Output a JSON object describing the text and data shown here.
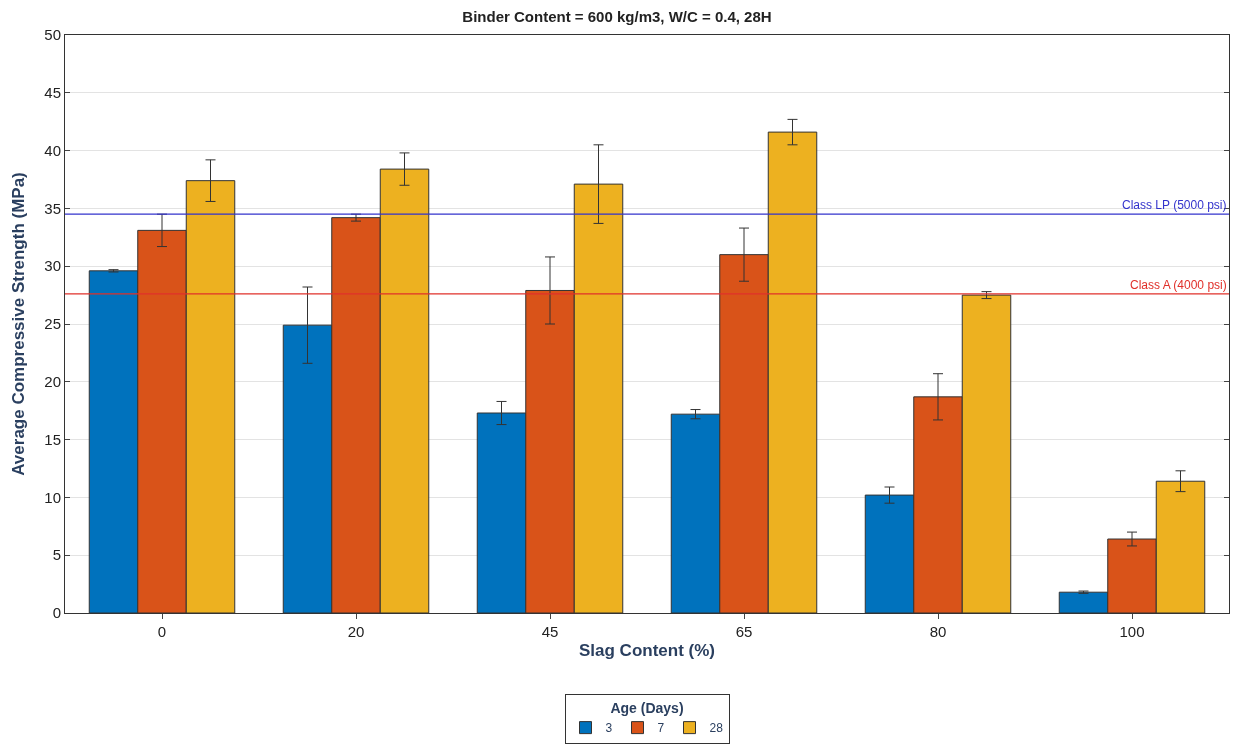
{
  "chart_data": {
    "type": "bar",
    "title": "Binder Content = 600 kg/m3, W/C = 0.4, 28H",
    "xlabel": "Slag Content (%)",
    "ylabel": "Average Compressive Strength (MPa)",
    "legend_title": "Age (Days)",
    "categories": [
      "0",
      "20",
      "45",
      "65",
      "80",
      "100"
    ],
    "series": [
      {
        "name": "3",
        "color": "#0072bd",
        "values": [
          29.6,
          24.9,
          17.3,
          17.2,
          10.2,
          1.8
        ],
        "errors": [
          0.1,
          3.3,
          1.0,
          0.4,
          0.7,
          0.1
        ]
      },
      {
        "name": "7",
        "color": "#d95319",
        "values": [
          33.1,
          34.2,
          27.9,
          31.0,
          18.7,
          6.4
        ],
        "errors": [
          1.4,
          0.3,
          2.9,
          2.3,
          2.0,
          0.6
        ]
      },
      {
        "name": "28",
        "color": "#edb120",
        "values": [
          37.4,
          38.4,
          37.1,
          41.6,
          27.5,
          11.4
        ],
        "errors": [
          1.8,
          1.4,
          3.4,
          1.1,
          0.3,
          0.9
        ]
      }
    ],
    "ylim": [
      0,
      50
    ],
    "yticks": [
      0,
      5,
      10,
      15,
      20,
      25,
      30,
      35,
      40,
      45,
      50
    ],
    "grid": "y",
    "legend": "bottom",
    "ref_lines": [
      {
        "axis": "y",
        "value": 34.5,
        "label": "Class LP (5000 psi)",
        "color": "#3333cc"
      },
      {
        "axis": "y",
        "value": 27.6,
        "label": "Class A (4000 psi)",
        "color": "#e0302a"
      }
    ]
  }
}
